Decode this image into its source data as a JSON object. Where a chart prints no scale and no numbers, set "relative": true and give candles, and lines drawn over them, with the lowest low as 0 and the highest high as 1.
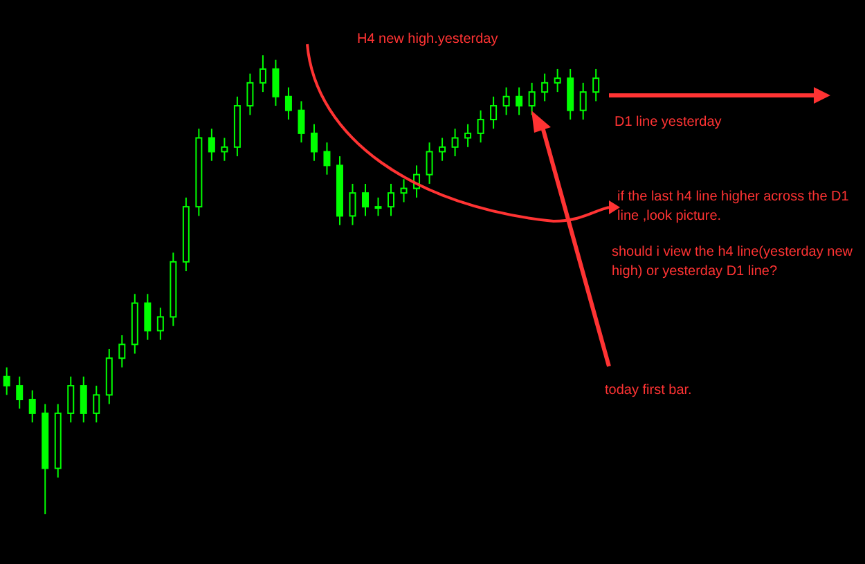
{
  "chart_data": {
    "type": "candlestick",
    "relative": true,
    "color": "#00ff00",
    "categories": [
      null,
      null,
      null,
      null,
      null,
      null,
      null,
      null,
      null,
      null,
      null,
      null,
      null,
      null,
      null,
      null,
      null,
      null,
      null,
      null,
      null,
      null,
      null,
      null,
      null,
      null,
      null,
      null,
      null,
      null,
      null,
      null,
      null,
      null,
      null,
      null,
      null,
      null,
      null,
      null,
      null,
      null,
      null,
      null,
      null,
      null,
      null
    ],
    "ohlc": [
      [
        0.3,
        0.32,
        0.26,
        0.28
      ],
      [
        0.28,
        0.3,
        0.23,
        0.25
      ],
      [
        0.25,
        0.27,
        0.2,
        0.22
      ],
      [
        0.22,
        0.24,
        0.0,
        0.1
      ],
      [
        0.1,
        0.24,
        0.08,
        0.22
      ],
      [
        0.22,
        0.3,
        0.2,
        0.28
      ],
      [
        0.28,
        0.3,
        0.2,
        0.22
      ],
      [
        0.22,
        0.28,
        0.2,
        0.26
      ],
      [
        0.26,
        0.36,
        0.24,
        0.34
      ],
      [
        0.34,
        0.39,
        0.32,
        0.37
      ],
      [
        0.37,
        0.48,
        0.35,
        0.46
      ],
      [
        0.46,
        0.48,
        0.38,
        0.4
      ],
      [
        0.4,
        0.45,
        0.38,
        0.43
      ],
      [
        0.43,
        0.57,
        0.41,
        0.55
      ],
      [
        0.55,
        0.69,
        0.53,
        0.67
      ],
      [
        0.67,
        0.84,
        0.65,
        0.82
      ],
      [
        0.82,
        0.84,
        0.77,
        0.79
      ],
      [
        0.79,
        0.82,
        0.77,
        0.8
      ],
      [
        0.8,
        0.91,
        0.78,
        0.89
      ],
      [
        0.89,
        0.96,
        0.87,
        0.94
      ],
      [
        0.94,
        1.0,
        0.92,
        0.97
      ],
      [
        0.97,
        0.99,
        0.89,
        0.91
      ],
      [
        0.91,
        0.93,
        0.86,
        0.88
      ],
      [
        0.88,
        0.9,
        0.81,
        0.83
      ],
      [
        0.83,
        0.85,
        0.77,
        0.79
      ],
      [
        0.79,
        0.81,
        0.74,
        0.76
      ],
      [
        0.76,
        0.78,
        0.63,
        0.65
      ],
      [
        0.65,
        0.72,
        0.63,
        0.7
      ],
      [
        0.7,
        0.72,
        0.65,
        0.67
      ],
      [
        0.67,
        0.69,
        0.65,
        0.67
      ],
      [
        0.67,
        0.72,
        0.65,
        0.7
      ],
      [
        0.7,
        0.73,
        0.68,
        0.71
      ],
      [
        0.71,
        0.76,
        0.69,
        0.74
      ],
      [
        0.74,
        0.81,
        0.72,
        0.79
      ],
      [
        0.79,
        0.82,
        0.77,
        0.8
      ],
      [
        0.8,
        0.84,
        0.78,
        0.82
      ],
      [
        0.82,
        0.85,
        0.8,
        0.83
      ],
      [
        0.83,
        0.88,
        0.81,
        0.86
      ],
      [
        0.86,
        0.91,
        0.84,
        0.89
      ],
      [
        0.89,
        0.93,
        0.87,
        0.91
      ],
      [
        0.91,
        0.93,
        0.87,
        0.89
      ],
      [
        0.89,
        0.94,
        0.87,
        0.92
      ],
      [
        0.92,
        0.96,
        0.9,
        0.94
      ],
      [
        0.94,
        0.97,
        0.92,
        0.95
      ],
      [
        0.95,
        0.97,
        0.86,
        0.88
      ],
      [
        0.88,
        0.94,
        0.86,
        0.92
      ],
      [
        0.92,
        0.97,
        0.9,
        0.95
      ]
    ],
    "annotations": [
      "H4 new high.yesterday",
      "D1 line yesterday",
      "if the last h4 line higher across the D1 line ,look picture.",
      "should i view the h4 line(yesterday new high) or yesterday D1 line?",
      "today first bar."
    ]
  }
}
